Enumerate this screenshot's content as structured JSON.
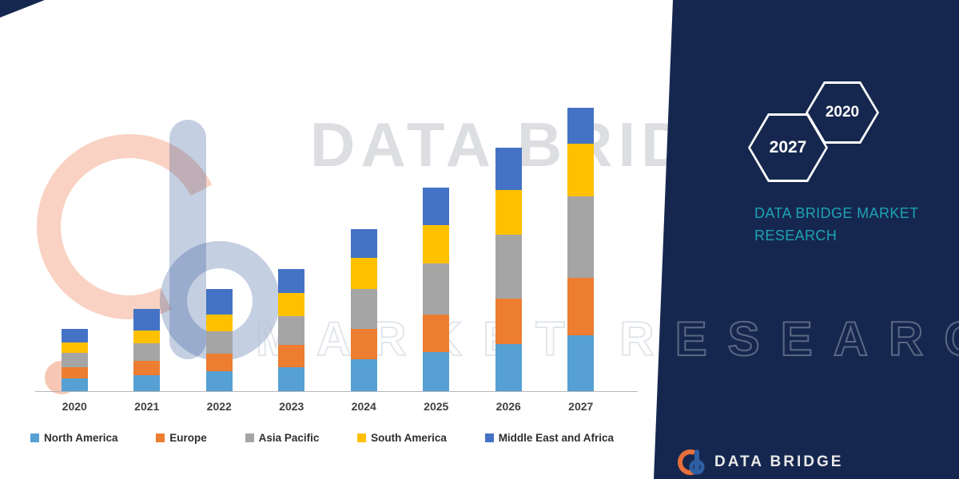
{
  "page": {
    "background_color": "#ffffff",
    "navy_color": "#16274F",
    "teal_color": "#1CA3B3"
  },
  "watermark": {
    "brand_text": "DATA BRIDGE",
    "outline_text": "MARKET RESEARCH"
  },
  "chart_data": {
    "type": "bar",
    "stacked": true,
    "title": "",
    "xlabel": "",
    "ylabel": "",
    "grid": false,
    "legend_position": "bottom",
    "ylim": [
      0,
      36
    ],
    "categories": [
      "2020",
      "2021",
      "2022",
      "2023",
      "2024",
      "2025",
      "2026",
      "2027"
    ],
    "series": [
      {
        "name": "North America",
        "color": "#56A0D3",
        "values": [
          1.6,
          2.0,
          2.5,
          3.0,
          4.0,
          4.9,
          5.9,
          7.0
        ]
      },
      {
        "name": "Europe",
        "color": "#ED7D31",
        "values": [
          1.4,
          1.8,
          2.2,
          2.8,
          3.8,
          4.7,
          5.7,
          7.2
        ]
      },
      {
        "name": "Asia Pacific",
        "color": "#A5A5A5",
        "values": [
          1.8,
          2.2,
          2.8,
          3.6,
          5.0,
          6.4,
          8.0,
          10.2
        ]
      },
      {
        "name": "South America",
        "color": "#FFC000",
        "values": [
          1.3,
          1.6,
          2.1,
          2.9,
          3.9,
          4.8,
          5.6,
          6.6
        ]
      },
      {
        "name": "Middle East and Africa",
        "color": "#4472C4",
        "values": [
          1.7,
          2.7,
          3.2,
          3.0,
          3.6,
          4.7,
          5.3,
          4.5
        ]
      }
    ]
  },
  "panel": {
    "hexagons": [
      {
        "label": "2027"
      },
      {
        "label": "2020"
      }
    ],
    "title": "DATA BRIDGE MARKET RESEARCH"
  },
  "footer": {
    "brand": "DATA BRIDGE"
  }
}
